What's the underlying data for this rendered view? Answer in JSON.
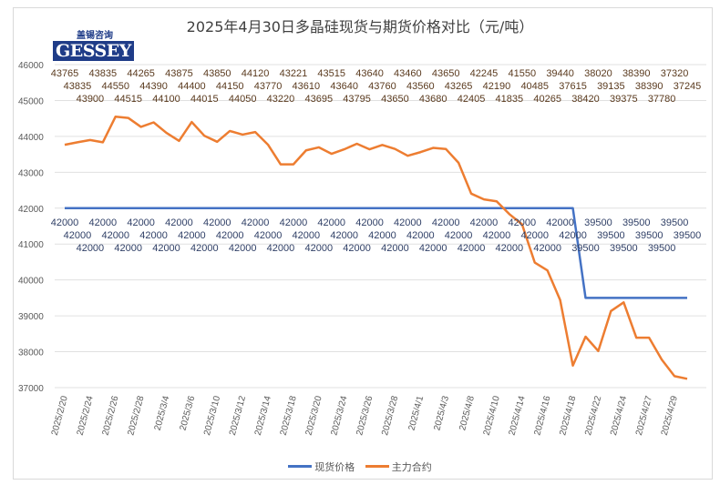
{
  "chart_data": {
    "type": "line",
    "title": "2025年4月30日多晶硅现货与期货价格对比（元/吨）",
    "xlabel": "",
    "ylabel": "",
    "ylim": [
      37000,
      46000
    ],
    "yticks": [
      37000,
      38000,
      39000,
      40000,
      41000,
      42000,
      43000,
      44000,
      45000,
      46000
    ],
    "grid": true,
    "legend_position": "bottom",
    "x": [
      "2025/2/20",
      "2025/2/21",
      "2025/2/24",
      "2025/2/25",
      "2025/2/26",
      "2025/2/27",
      "2025/2/28",
      "2025/3/3",
      "2025/3/4",
      "2025/3/5",
      "2025/3/6",
      "2025/3/7",
      "2025/3/10",
      "2025/3/11",
      "2025/3/12",
      "2025/3/13",
      "2025/3/14",
      "2025/3/17",
      "2025/3/18",
      "2025/3/19",
      "2025/3/20",
      "2025/3/21",
      "2025/3/24",
      "2025/3/25",
      "2025/3/26",
      "2025/3/27",
      "2025/3/28",
      "2025/3/31",
      "2025/4/1",
      "2025/4/2",
      "2025/4/3",
      "2025/4/7",
      "2025/4/8",
      "2025/4/9",
      "2025/4/10",
      "2025/4/11",
      "2025/4/14",
      "2025/4/15",
      "2025/4/16",
      "2025/4/17",
      "2025/4/18",
      "2025/4/21",
      "2025/4/22",
      "2025/4/23",
      "2025/4/24",
      "2025/4/25",
      "2025/4/27",
      "2025/4/28",
      "2025/4/29",
      "2025/4/30"
    ],
    "series": [
      {
        "name": "现货价格",
        "color": "#4472c4",
        "values": [
          42000,
          42000,
          42000,
          42000,
          42000,
          42000,
          42000,
          42000,
          42000,
          42000,
          42000,
          42000,
          42000,
          42000,
          42000,
          42000,
          42000,
          42000,
          42000,
          42000,
          42000,
          42000,
          42000,
          42000,
          42000,
          42000,
          42000,
          42000,
          42000,
          42000,
          42000,
          42000,
          42000,
          42000,
          42000,
          42000,
          42000,
          42000,
          42000,
          42000,
          42000,
          39500,
          39500,
          39500,
          39500,
          39500,
          39500,
          39500,
          39500,
          39500
        ]
      },
      {
        "name": "主力合约",
        "color": "#ed7d31",
        "values": [
          43765,
          43835,
          43900,
          43835,
          44550,
          44515,
          44265,
          44390,
          44100,
          43875,
          44400,
          44015,
          43850,
          44150,
          44050,
          44120,
          43770,
          43220,
          43221,
          43610,
          43695,
          43515,
          43640,
          43795,
          43640,
          43760,
          43650,
          43460,
          43560,
          43680,
          43650,
          43265,
          42405,
          42245,
          42190,
          41835,
          41550,
          40485,
          40265,
          39440,
          37615,
          38420,
          38020,
          39135,
          39375,
          38390,
          38390,
          37780,
          37320,
          37245
        ]
      }
    ]
  },
  "logo": {
    "cn": "盖锡咨询",
    "en": "GESSEY"
  }
}
